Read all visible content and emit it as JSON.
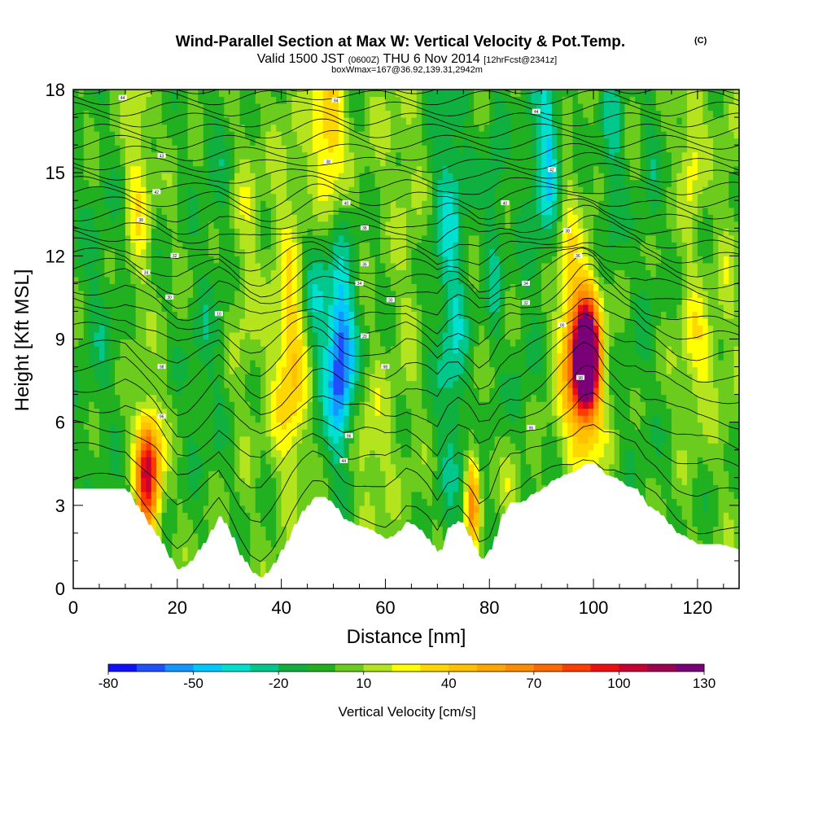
{
  "chart_data": {
    "type": "heatmap",
    "title": "Wind-Parallel Section at Max W: Vertical Velocity & Pot.Temp.",
    "title_mark": "(C)",
    "subtitle": {
      "valid": "Valid 1500 JST",
      "utc": "(0600Z)",
      "date": "THU 6 Nov 2014",
      "fcst": "[12hrFcst@2341z]"
    },
    "subtitle2": "boxWmax=167@36.92,139.31,2942m",
    "xlabel": "Distance [nm]",
    "ylabel": "Height [Kft MSL]",
    "xlim": [
      0,
      128
    ],
    "ylim": [
      0,
      18
    ],
    "x_ticks": [
      "0",
      "20",
      "40",
      "60",
      "80",
      "100",
      "120"
    ],
    "y_ticks": [
      "0",
      "3",
      "6",
      "9",
      "12",
      "15",
      "18"
    ],
    "colorbar": {
      "title": "Vertical Velocity [cm/s]",
      "labels": [
        "-80",
        "-50",
        "-20",
        "10",
        "40",
        "70",
        "100",
        "130"
      ],
      "label_values": [
        -80,
        -50,
        -20,
        10,
        40,
        70,
        100,
        130
      ],
      "min": -80,
      "max": 130,
      "step": 10,
      "colors": [
        "#1010ff",
        "#1e50ff",
        "#1496ff",
        "#00c8ff",
        "#00e0d0",
        "#00c88c",
        "#10b040",
        "#20b020",
        "#6ccc1e",
        "#b4e41e",
        "#ffff00",
        "#ffd700",
        "#ffc000",
        "#ffa500",
        "#ff8c00",
        "#ff6a00",
        "#ff3c00",
        "#ee1010",
        "#c80032",
        "#a00050",
        "#7a0078"
      ]
    },
    "terrain_profile": {
      "x": [
        0,
        10,
        12,
        14,
        16,
        18,
        20,
        22,
        24,
        26,
        28,
        30,
        32,
        34,
        36,
        38,
        40,
        42,
        44,
        46,
        48,
        50,
        52,
        54,
        56,
        58,
        60,
        62,
        64,
        66,
        68,
        70,
        72,
        74,
        76,
        78,
        80,
        82,
        84,
        86,
        88,
        90,
        92,
        94,
        96,
        98,
        100,
        102,
        104,
        106,
        108,
        110,
        112,
        114,
        116,
        118,
        120,
        122,
        124,
        126,
        128
      ],
      "height": [
        3.6,
        3.6,
        3.0,
        2.4,
        1.9,
        1.2,
        0.7,
        0.9,
        1.4,
        2.0,
        2.6,
        2.0,
        1.2,
        0.6,
        0.4,
        0.8,
        1.4,
        2.2,
        2.8,
        3.3,
        3.3,
        3.0,
        2.5,
        2.3,
        2.2,
        2.0,
        1.8,
        2.0,
        2.4,
        2.2,
        1.8,
        1.2,
        2.2,
        2.5,
        1.9,
        1.0,
        1.4,
        2.6,
        3.1,
        3.1,
        3.4,
        3.6,
        3.9,
        4.1,
        4.2,
        4.5,
        4.5,
        4.1,
        4.0,
        3.7,
        3.6,
        3.0,
        2.8,
        2.4,
        2.0,
        1.8,
        1.6,
        1.6,
        1.6,
        1.5,
        1.4
      ]
    },
    "background_w": 0,
    "w_features": [
      {
        "x": 14.5,
        "z": 4.5,
        "w": 75,
        "sx": 1.6,
        "sz": 1.3
      },
      {
        "x": 14.0,
        "z": 3.0,
        "w": 40,
        "sx": 1.8,
        "sz": 2.0
      },
      {
        "x": 11.0,
        "z": 2.8,
        "w": -22,
        "sx": 1.0,
        "sz": 0.7
      },
      {
        "x": 49.0,
        "z": 16.5,
        "w": 45,
        "sx": 2.2,
        "sz": 2.4
      },
      {
        "x": 42.0,
        "z": 7.5,
        "w": 35,
        "sx": 2.4,
        "sz": 2.5
      },
      {
        "x": 41.5,
        "z": 12.0,
        "w": 15,
        "sx": 2.8,
        "sz": 4.0
      },
      {
        "x": 51.5,
        "z": 8.2,
        "w": -50,
        "sx": 1.6,
        "sz": 2.0
      },
      {
        "x": 50.0,
        "z": 9.0,
        "w": -25,
        "sx": 3.2,
        "sz": 3.5
      },
      {
        "x": 46.0,
        "z": 11.0,
        "w": -18,
        "sx": 1.8,
        "sz": 1.8
      },
      {
        "x": 72.5,
        "z": 13.0,
        "w": -28,
        "sx": 2.4,
        "sz": 4.5
      },
      {
        "x": 73.0,
        "z": 6.0,
        "w": -15,
        "sx": 1.8,
        "sz": 3.0
      },
      {
        "x": 81.0,
        "z": 13.5,
        "w": -20,
        "sx": 1.3,
        "sz": 4.0
      },
      {
        "x": 76.8,
        "z": 3.2,
        "w": 60,
        "sx": 0.9,
        "sz": 1.3
      },
      {
        "x": 84.5,
        "z": 3.5,
        "w": 20,
        "sx": 1.2,
        "sz": 1.0
      },
      {
        "x": 98.5,
        "z": 8.3,
        "w": 135,
        "sx": 1.6,
        "sz": 1.3
      },
      {
        "x": 98.0,
        "z": 8.0,
        "w": 70,
        "sx": 2.8,
        "sz": 2.4
      },
      {
        "x": 91.5,
        "z": 16.0,
        "w": -38,
        "sx": 1.5,
        "sz": 2.2
      },
      {
        "x": 88.5,
        "z": 14.0,
        "w": -15,
        "sx": 2.0,
        "sz": 3.0
      },
      {
        "x": 103.5,
        "z": 15.5,
        "w": -22,
        "sx": 1.6,
        "sz": 3.0
      },
      {
        "x": 111.0,
        "z": 15.0,
        "w": -12,
        "sx": 1.4,
        "sz": 3.0
      },
      {
        "x": 120.0,
        "z": 8.5,
        "w": 25,
        "sx": 2.5,
        "sz": 1.8
      },
      {
        "x": 119.0,
        "z": 16.0,
        "w": 25,
        "sx": 1.5,
        "sz": 2.5
      },
      {
        "x": 12.5,
        "z": 14.5,
        "w": 25,
        "sx": 1.6,
        "sz": 3.0
      },
      {
        "x": 33.0,
        "z": 12.0,
        "w": 15,
        "sx": 2.0,
        "sz": 4.0
      },
      {
        "x": 64.5,
        "z": 12.0,
        "w": 10,
        "sx": 2.0,
        "sz": 5.0
      },
      {
        "x": 95.0,
        "z": 11.5,
        "w": 20,
        "sx": 1.4,
        "sz": 2.5
      },
      {
        "x": 57.5,
        "z": 5.0,
        "w": 20,
        "sx": 2.5,
        "sz": 2.0
      },
      {
        "x": 25.0,
        "z": 8.0,
        "w": -12,
        "sx": 3.0,
        "sz": 3.0
      },
      {
        "x": 5.0,
        "z": 10.0,
        "w": -12,
        "sx": 3.0,
        "sz": 4.0
      },
      {
        "x": 28.0,
        "z": 15.5,
        "w": -10,
        "sx": 2.5,
        "sz": 3.0
      },
      {
        "x": 108.0,
        "z": 7.0,
        "w": -8,
        "sx": 3.0,
        "sz": 3.0
      },
      {
        "x": 126.0,
        "z": 12.0,
        "w": 10,
        "sx": 1.5,
        "sz": 5.0
      },
      {
        "x": 60.0,
        "z": 16.5,
        "w": 8,
        "sx": 3.0,
        "sz": 2.0
      },
      {
        "x": 86.0,
        "z": 7.5,
        "w": -10,
        "sx": 1.5,
        "sz": 2.0
      }
    ],
    "theta_contours": {
      "levels": [
        286,
        288,
        290,
        292,
        294,
        296,
        298,
        300,
        302,
        304,
        306,
        308,
        310,
        312,
        314,
        316,
        318,
        320,
        322,
        324,
        326,
        328,
        330,
        332,
        334,
        336,
        338,
        340,
        342,
        344
      ],
      "base_height": [
        2.9,
        4.1,
        5.0,
        5.8,
        6.6,
        7.4,
        8.1,
        8.8,
        9.4,
        9.9,
        10.4,
        10.9,
        11.3,
        11.7,
        12.1,
        12.5,
        12.9,
        13.3,
        13.7,
        14.1,
        14.5,
        14.9,
        15.3,
        15.7,
        16.1,
        16.5,
        16.9,
        17.3,
        17.7,
        18.1
      ],
      "labels": [
        {
          "text": "44",
          "x": 9.5,
          "z": 17.7
        },
        {
          "text": "43",
          "x": 17.0,
          "z": 15.6
        },
        {
          "text": "42",
          "x": 16.0,
          "z": 14.3
        },
        {
          "text": "38",
          "x": 13.0,
          "z": 13.3
        },
        {
          "text": "32",
          "x": 19.5,
          "z": 12.0
        },
        {
          "text": "34",
          "x": 14.0,
          "z": 11.4
        },
        {
          "text": "30",
          "x": 18.5,
          "z": 10.5
        },
        {
          "text": "10",
          "x": 28.0,
          "z": 9.9
        },
        {
          "text": "98",
          "x": 17.0,
          "z": 8.0
        },
        {
          "text": "96",
          "x": 17.0,
          "z": 6.2
        },
        {
          "text": "94",
          "x": 50.5,
          "z": 17.6
        },
        {
          "text": "38",
          "x": 49.0,
          "z": 15.4
        },
        {
          "text": "40",
          "x": 52.5,
          "z": 13.9
        },
        {
          "text": "38",
          "x": 56.0,
          "z": 13.0
        },
        {
          "text": "36",
          "x": 56.0,
          "z": 11.7
        },
        {
          "text": "34",
          "x": 55.0,
          "z": 11.0
        },
        {
          "text": "30",
          "x": 61.0,
          "z": 10.4
        },
        {
          "text": "20",
          "x": 56.0,
          "z": 9.1
        },
        {
          "text": "98",
          "x": 60.0,
          "z": 8.0
        },
        {
          "text": "96",
          "x": 53.0,
          "z": 5.5
        },
        {
          "text": "44",
          "x": 52.0,
          "z": 4.6
        },
        {
          "text": "44",
          "x": 89.0,
          "z": 17.2
        },
        {
          "text": "42",
          "x": 92.0,
          "z": 15.1
        },
        {
          "text": "40",
          "x": 83.0,
          "z": 13.9
        },
        {
          "text": "38",
          "x": 95.0,
          "z": 12.9
        },
        {
          "text": "36",
          "x": 97.0,
          "z": 12.0
        },
        {
          "text": "34",
          "x": 87.0,
          "z": 11.0
        },
        {
          "text": "32",
          "x": 87.0,
          "z": 10.3
        },
        {
          "text": "00",
          "x": 94.0,
          "z": 9.5
        },
        {
          "text": "98",
          "x": 97.5,
          "z": 7.6
        },
        {
          "text": "96",
          "x": 88.0,
          "z": 5.8
        }
      ]
    },
    "grid": false,
    "legend": "none"
  }
}
